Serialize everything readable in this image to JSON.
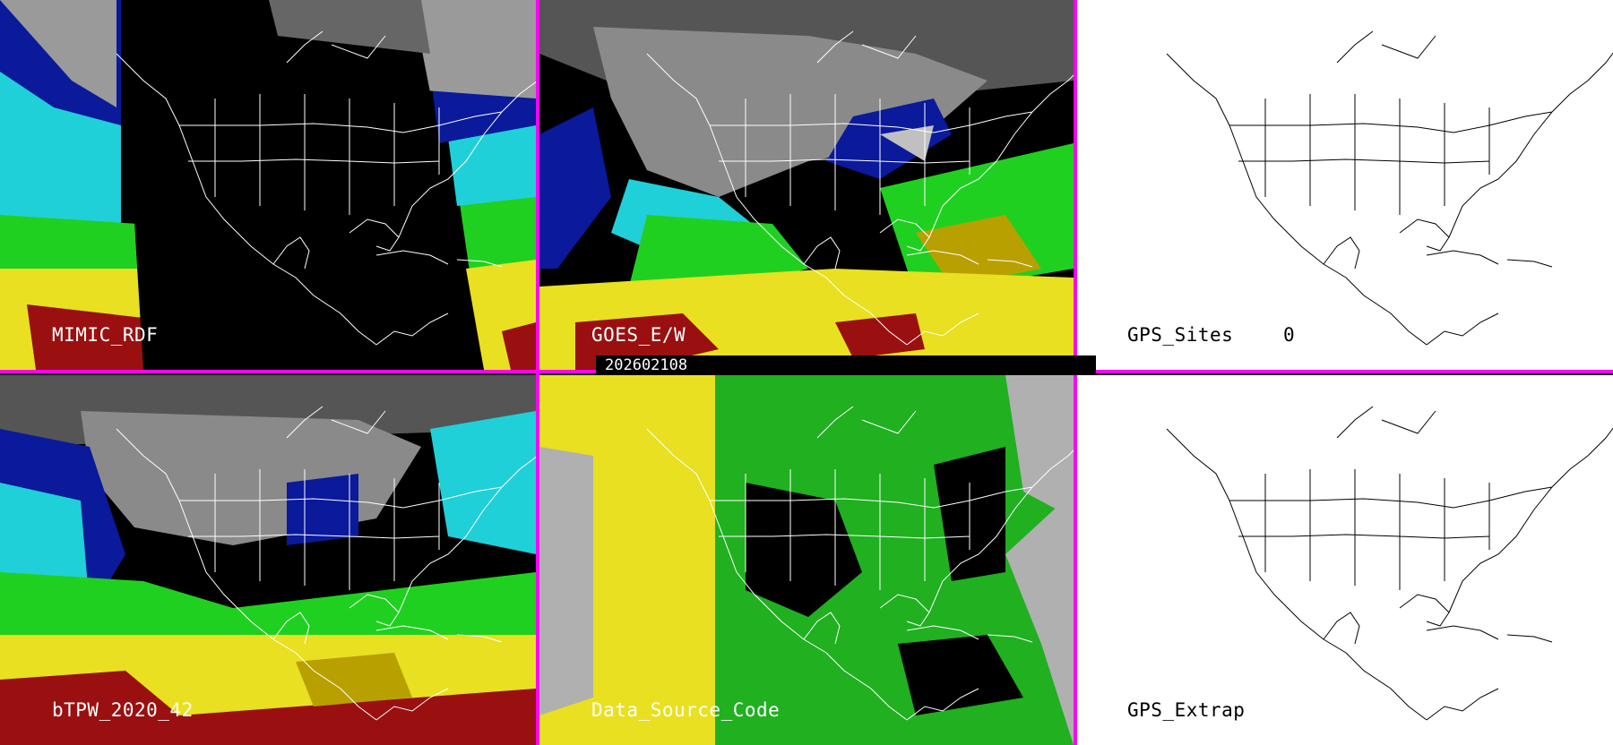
{
  "date_label": "202602108",
  "panels": {
    "mimic": {
      "label": "MIMIC_RDF"
    },
    "goes": {
      "label": "GOES_E/W"
    },
    "gps_sites": {
      "label": "GPS_Sites",
      "count": "0"
    },
    "btpw": {
      "label": "bTPW_2020_42"
    },
    "data_source": {
      "label": "Data_Source_Code"
    },
    "gps_extrap": {
      "label": "GPS_Extrap"
    }
  },
  "colors": {
    "separator": "#ff00ff",
    "black": "#000000",
    "white": "#ffffff",
    "gray": "#b0b0b0",
    "blue": "#0a1a9a",
    "cyan": "#20d0d8",
    "green": "#20d020",
    "yellow": "#e8e020",
    "dark_red": "#9a1010",
    "olive": "#b8a000"
  }
}
